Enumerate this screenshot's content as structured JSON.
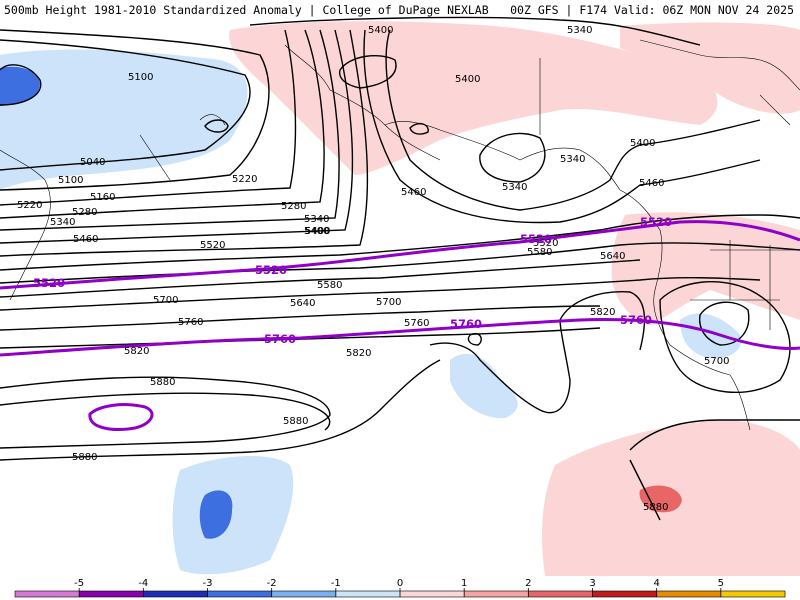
{
  "header": {
    "title": "500mb Height 1981-2010 Standardized Anomaly | College of DuPage NEXLAB",
    "run_info": "00Z GFS | F174 Valid: 06Z MON NOV 24 2025"
  },
  "map": {
    "contour_labels": [
      "5400",
      "5340",
      "5100",
      "5040",
      "5400",
      "5220",
      "5100",
      "5160",
      "5220",
      "5280",
      "5340",
      "5400",
      "5340",
      "5400",
      "5280",
      "5340",
      "5400",
      "5460",
      "5340",
      "5460",
      "5460",
      "5520",
      "5520",
      "5580",
      "5640",
      "5580",
      "5700",
      "5640",
      "5700",
      "5760",
      "5760",
      "5820",
      "5820",
      "5700",
      "5820",
      "5880",
      "5880",
      "5880",
      "5880"
    ],
    "highlight_labels": [
      "5520",
      "5520",
      "5520",
      "5520",
      "5760",
      "5760",
      "5760"
    ]
  },
  "colorbar": {
    "ticks": [
      "-5",
      "-4",
      "-3",
      "-2",
      "-1",
      "0",
      "1",
      "2",
      "3",
      "4",
      "5"
    ],
    "colors": {
      "m5": "#d67ad6",
      "m4": "#8a00b0",
      "m3": "#1c2fb5",
      "m2": "#3d6fe0",
      "m1": "#7ab0f2",
      "m0": "#cce3fa",
      "p0": "#fcd6d6",
      "p1": "#f5a3a3",
      "p2": "#e86666",
      "p3": "#c21b1b",
      "p4": "#e88a00",
      "p5": "#f5c800"
    }
  }
}
